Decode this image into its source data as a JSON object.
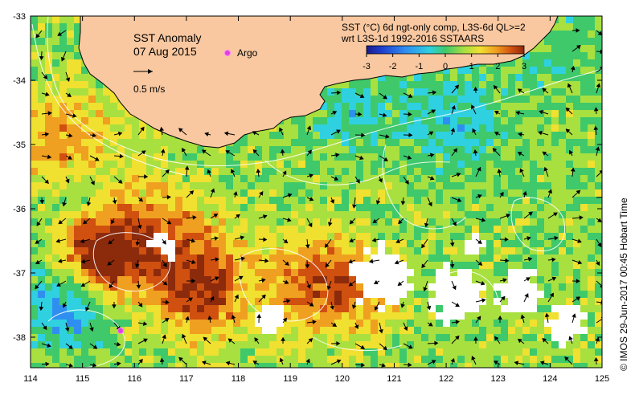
{
  "map": {
    "title": "SST Anomaly",
    "date": "07 Aug 2015",
    "argo_label": "Argo",
    "velocity_scale_label": "0.5 m/s",
    "lon_ticks": [
      "114",
      "115",
      "116",
      "117",
      "118",
      "119",
      "120",
      "121",
      "122",
      "123",
      "124",
      "125"
    ],
    "lat_ticks": [
      "-33",
      "-34",
      "-35",
      "-36",
      "-37",
      "-38"
    ],
    "colorbar": {
      "title_line1": "SST (°C) 6d ngt-only comp, L3S-6d QL>=2",
      "title_line2": "wrt L3S-1d 1992-2016 SSTAARS",
      "ticks": [
        "-3",
        "-2",
        "-1",
        "0",
        "1",
        "2",
        "3"
      ],
      "colors": [
        "#1a1a8c",
        "#1f3fd0",
        "#2f8ff0",
        "#2fd0e0",
        "#3fc96a",
        "#a8e040",
        "#f0e030",
        "#f0a020",
        "#d05010",
        "#8c2a0c"
      ]
    },
    "credit": "© IMOS 29-Jun-2017 00:45 Hobart Time",
    "colors": {
      "land": "#f9c8a0",
      "ocean_base": "#4cc64c"
    }
  }
}
